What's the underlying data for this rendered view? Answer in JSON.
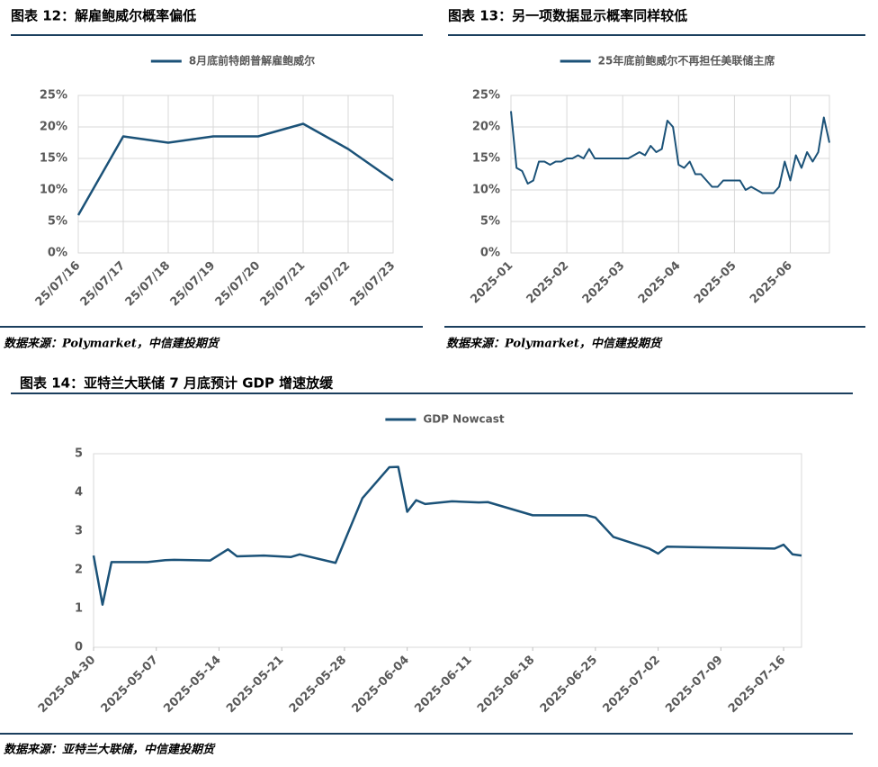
{
  "chart_data": [
    {
      "type": "line",
      "title": "图表 12：解雇鲍威尔概率偏低",
      "source": "数据来源：Polymarket，中信建投期货",
      "categories": [
        "25/07/16",
        "25/07/17",
        "25/07/18",
        "25/07/19",
        "25/07/20",
        "25/07/21",
        "25/07/22",
        "25/07/23"
      ],
      "series": [
        {
          "name": "8月底前特朗普解雇鲍威尔",
          "color": "#1b5278",
          "values": [
            6,
            18.5,
            17.5,
            18.5,
            18.5,
            20.5,
            16.5,
            11.5
          ]
        }
      ],
      "ylim": [
        0,
        25
      ],
      "yticks": [
        {
          "value": 0,
          "label": "0%"
        },
        {
          "value": 5,
          "label": "5%"
        },
        {
          "value": 10,
          "label": "10%"
        },
        {
          "value": 15,
          "label": "15%"
        },
        {
          "value": 20,
          "label": "20%"
        },
        {
          "value": 25,
          "label": "25%"
        }
      ],
      "grid": true,
      "legend": "top"
    },
    {
      "type": "line",
      "title": "图表 13：另一项数据显示概率同样较低",
      "source": "数据来源：Polymarket，中信建投期货",
      "categories": [
        "2025-01",
        null,
        null,
        null,
        null,
        null,
        null,
        null,
        null,
        null,
        "2025-02",
        null,
        null,
        null,
        null,
        null,
        null,
        null,
        null,
        null,
        "2025-03",
        null,
        null,
        null,
        null,
        null,
        null,
        null,
        null,
        null,
        "2025-04",
        null,
        null,
        null,
        null,
        null,
        null,
        null,
        null,
        null,
        "2025-05",
        null,
        null,
        null,
        null,
        null,
        null,
        null,
        null,
        null,
        "2025-06",
        null,
        null,
        null,
        null,
        null,
        null,
        null
      ],
      "series": [
        {
          "name": "25年底前鲍威尔不再担任美联储主席",
          "color": "#1b5278",
          "values": [
            22.5,
            13.5,
            13,
            11,
            11.5,
            14.5,
            14.5,
            14,
            14.5,
            14.5,
            15,
            15,
            15.5,
            15,
            16.5,
            15,
            15,
            15,
            15,
            15,
            15,
            15,
            15.5,
            16,
            15.5,
            17,
            16,
            16.5,
            21,
            20,
            14,
            13.5,
            14.5,
            12.5,
            12.5,
            11.5,
            10.5,
            10.5,
            11.5,
            11.5,
            11.5,
            11.5,
            10,
            10.5,
            10,
            9.5,
            9.5,
            9.5,
            10.5,
            14.5,
            11.5,
            15.5,
            13.5,
            16,
            14.5,
            16,
            21.5,
            17.5
          ]
        }
      ],
      "ylim": [
        0,
        25
      ],
      "yticks": [
        {
          "value": 0,
          "label": "0%"
        },
        {
          "value": 5,
          "label": "5%"
        },
        {
          "value": 10,
          "label": "10%"
        },
        {
          "value": 15,
          "label": "15%"
        },
        {
          "value": 20,
          "label": "20%"
        },
        {
          "value": 25,
          "label": "25%"
        }
      ],
      "grid": true,
      "legend": "top"
    },
    {
      "type": "line",
      "title": "图表 14：亚特兰大联储 7 月底预计 GDP 增速放缓",
      "source": "数据来源：亚特兰大联储，中信建投期货",
      "x": [
        "2025-04-30",
        "2025-05-01",
        "2025-05-02",
        "2025-05-05",
        "2025-05-06",
        "2025-05-08",
        "2025-05-09",
        "2025-05-13",
        "2025-05-15",
        "2025-05-16",
        "2025-05-19",
        "2025-05-22",
        "2025-05-23",
        "2025-05-27",
        "2025-05-30",
        "2025-06-02",
        "2025-06-03",
        "2025-06-04",
        "2025-06-05",
        "2025-06-06",
        "2025-06-09",
        "2025-06-12",
        "2025-06-13",
        "2025-06-18",
        "2025-06-24",
        "2025-06-25",
        "2025-06-27",
        "2025-07-01",
        "2025-07-02",
        "2025-07-03",
        "2025-07-10",
        "2025-07-15",
        "2025-07-16",
        "2025-07-17",
        "2025-07-18"
      ],
      "series": [
        {
          "name": "GDP Nowcast",
          "color": "#1b5278",
          "values": [
            2.37,
            1.1,
            2.2,
            2.2,
            2.2,
            2.25,
            2.26,
            2.24,
            2.53,
            2.35,
            2.37,
            2.33,
            2.4,
            2.18,
            3.85,
            4.65,
            4.66,
            3.5,
            3.8,
            3.7,
            3.77,
            3.74,
            3.75,
            3.41,
            3.41,
            3.35,
            2.85,
            2.55,
            2.42,
            2.6,
            2.57,
            2.55,
            2.65,
            2.4,
            2.37
          ]
        }
      ],
      "xticks": [
        "2025-04-30",
        "2025-05-07",
        "2025-05-14",
        "2025-05-21",
        "2025-05-28",
        "2025-06-04",
        "2025-06-11",
        "2025-06-18",
        "2025-06-25",
        "2025-07-02",
        "2025-07-09",
        "2025-07-16"
      ],
      "ylim": [
        0,
        5
      ],
      "yticks": [
        0,
        1,
        2,
        3,
        4,
        5
      ],
      "grid": false,
      "legend": "top"
    }
  ]
}
